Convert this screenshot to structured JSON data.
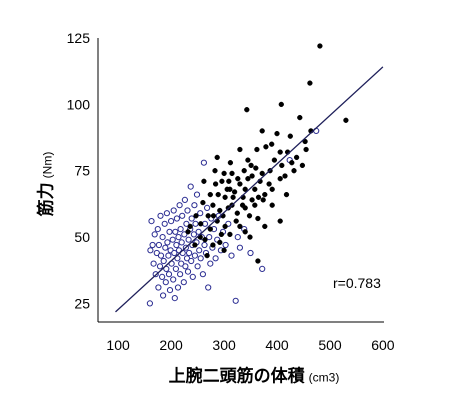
{
  "chart_data": {
    "type": "scatter",
    "xlabel": "上腕二頭筋の体積",
    "xlabel_unit": "(cm3)",
    "ylabel": "筋力",
    "ylabel_unit": "(Nm)",
    "xticks": [
      100,
      200,
      300,
      400,
      500,
      600
    ],
    "yticks": [
      25,
      50,
      75,
      100,
      125
    ],
    "xlim": [
      62,
      602
    ],
    "ylim": [
      18,
      125
    ],
    "grid": false,
    "legend": "none",
    "colors": {
      "axis": "#000000",
      "background": "#ffffff"
    },
    "annotations": [
      {
        "text": "r=0.783"
      }
    ],
    "trendline": {
      "x": [
        95,
        600
      ],
      "y": [
        21.8,
        114.1
      ],
      "color": "#1e1f5a"
    },
    "series": [
      {
        "marker": "open-circle",
        "color": "#2b2d92",
        "points": [
          [
            160,
            25
          ],
          [
            161,
            45
          ],
          [
            163,
            56
          ],
          [
            165,
            47
          ],
          [
            167,
            40
          ],
          [
            169,
            51
          ],
          [
            171,
            36
          ],
          [
            173,
            44
          ],
          [
            175,
            53
          ],
          [
            176,
            31
          ],
          [
            177,
            47
          ],
          [
            179,
            39
          ],
          [
            180,
            58
          ],
          [
            181,
            43
          ],
          [
            183,
            35
          ],
          [
            184,
            50
          ],
          [
            185,
            28
          ],
          [
            186,
            41
          ],
          [
            188,
            55
          ],
          [
            189,
            46
          ],
          [
            190,
            33
          ],
          [
            191,
            38
          ],
          [
            192,
            59
          ],
          [
            193,
            48
          ],
          [
            195,
            43
          ],
          [
            196,
            36
          ],
          [
            197,
            52
          ],
          [
            198,
            30
          ],
          [
            199,
            45
          ],
          [
            200,
            56
          ],
          [
            201,
            40
          ],
          [
            203,
            49
          ],
          [
            204,
            34
          ],
          [
            205,
            60
          ],
          [
            206,
            44
          ],
          [
            207,
            27
          ],
          [
            208,
            52
          ],
          [
            209,
            38
          ],
          [
            210,
            47
          ],
          [
            211,
            57
          ],
          [
            212,
            42
          ],
          [
            213,
            31
          ],
          [
            214,
            50
          ],
          [
            215,
            45
          ],
          [
            216,
            62
          ],
          [
            217,
            36
          ],
          [
            218,
            53
          ],
          [
            219,
            40
          ],
          [
            220,
            48
          ],
          [
            221,
            58
          ],
          [
            222,
            44
          ],
          [
            224,
            33
          ],
          [
            225,
            51
          ],
          [
            226,
            64
          ],
          [
            227,
            39
          ],
          [
            228,
            46
          ],
          [
            229,
            55
          ],
          [
            230,
            42
          ],
          [
            231,
            60
          ],
          [
            232,
            37
          ],
          [
            233,
            49
          ],
          [
            234,
            44
          ],
          [
            236,
            53
          ],
          [
            237,
            69
          ],
          [
            238,
            41
          ],
          [
            239,
            57
          ],
          [
            240,
            47
          ],
          [
            241,
            35
          ],
          [
            243,
            51
          ],
          [
            244,
            62
          ],
          [
            245,
            43
          ],
          [
            246,
            55
          ],
          [
            248,
            48
          ],
          [
            249,
            66
          ],
          [
            250,
            39
          ],
          [
            252,
            52
          ],
          [
            253,
            45
          ],
          [
            255,
            59
          ],
          [
            256,
            42
          ],
          [
            258,
            50
          ],
          [
            260,
            36
          ],
          [
            262,
            78
          ],
          [
            263,
            47
          ],
          [
            264,
            55
          ],
          [
            266,
            44
          ],
          [
            268,
            61
          ],
          [
            270,
            31
          ],
          [
            272,
            50
          ],
          [
            274,
            40
          ],
          [
            276,
            57
          ],
          [
            278,
            46
          ],
          [
            281,
            53
          ],
          [
            284,
            42
          ],
          [
            287,
            49
          ],
          [
            290,
            58
          ],
          [
            294,
            45
          ],
          [
            298,
            52
          ],
          [
            303,
            47
          ],
          [
            308,
            55
          ],
          [
            314,
            43
          ],
          [
            322,
            26
          ],
          [
            326,
            50
          ],
          [
            330,
            46
          ],
          [
            338,
            53
          ],
          [
            350,
            44
          ],
          [
            372,
            38
          ],
          [
            424,
            79
          ],
          [
            474,
            90
          ]
        ]
      },
      {
        "marker": "filled-circle",
        "color": "#000000",
        "points": [
          [
            481,
            122
          ],
          [
            462,
            108
          ],
          [
            443,
            95
          ],
          [
            530,
            94
          ],
          [
            408,
            100
          ],
          [
            343,
            98
          ],
          [
            464,
            90
          ],
          [
            372,
            90
          ],
          [
            400,
            89
          ],
          [
            425,
            88
          ],
          [
            453,
            86
          ],
          [
            379,
            84
          ],
          [
            406,
            82
          ],
          [
            330,
            83
          ],
          [
            428,
            78
          ],
          [
            409,
            77
          ],
          [
            432,
            75
          ],
          [
            345,
            79
          ],
          [
            351,
            77
          ],
          [
            287,
            80
          ],
          [
            338,
            75
          ],
          [
            315,
            74
          ],
          [
            372,
            74
          ],
          [
            387,
            75
          ],
          [
            353,
            73
          ],
          [
            326,
            72
          ],
          [
            309,
            71
          ],
          [
            296,
            71
          ],
          [
            368,
            71
          ],
          [
            406,
            72
          ],
          [
            415,
            73
          ],
          [
            262,
            71
          ],
          [
            311,
            68
          ],
          [
            330,
            70
          ],
          [
            340,
            68
          ],
          [
            358,
            68
          ],
          [
            377,
            66
          ],
          [
            391,
            68
          ],
          [
            353,
            64
          ],
          [
            336,
            65
          ],
          [
            317,
            65
          ],
          [
            302,
            65
          ],
          [
            289,
            66
          ],
          [
            274,
            66
          ],
          [
            260,
            63
          ],
          [
            279,
            62
          ],
          [
            292,
            60
          ],
          [
            308,
            61
          ],
          [
            325,
            59
          ],
          [
            340,
            61
          ],
          [
            358,
            62
          ],
          [
            374,
            64
          ],
          [
            391,
            62
          ],
          [
            406,
            56
          ],
          [
            274,
            53
          ],
          [
            287,
            56
          ],
          [
            302,
            54
          ],
          [
            330,
            54
          ],
          [
            364,
            57
          ],
          [
            377,
            54
          ],
          [
            279,
            47
          ],
          [
            292,
            48
          ],
          [
            364,
            41
          ],
          [
            255,
            50
          ],
          [
            264,
            49
          ],
          [
            236,
            54
          ],
          [
            247,
            58
          ],
          [
            311,
            51
          ],
          [
            349,
            50
          ],
          [
            323,
            56
          ],
          [
            298,
            58
          ],
          [
            315,
            62
          ],
          [
            284,
            70
          ],
          [
            270,
            58
          ],
          [
            256,
            55
          ],
          [
            245,
            47
          ],
          [
            232,
            52
          ],
          [
            268,
            43
          ],
          [
            300,
            45
          ],
          [
            320,
            67
          ],
          [
            345,
            72
          ],
          [
            360,
            76
          ],
          [
            395,
            79
          ],
          [
            385,
            70
          ],
          [
            365,
            65
          ],
          [
            348,
            58
          ],
          [
            335,
            62
          ],
          [
            300,
            74
          ],
          [
            390,
            85
          ],
          [
            420,
            82
          ],
          [
            437,
            80
          ],
          [
            448,
            77
          ],
          [
            455,
            83
          ],
          [
            418,
            66
          ],
          [
            283,
            75
          ],
          [
            362,
            83
          ],
          [
            312,
            78
          ],
          [
            280,
            58
          ],
          [
            295,
            51
          ],
          [
            340,
            52
          ],
          [
            306,
            68
          ]
        ]
      }
    ]
  }
}
